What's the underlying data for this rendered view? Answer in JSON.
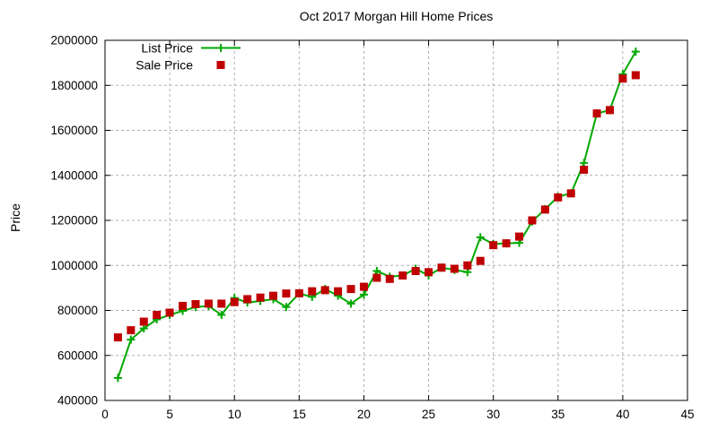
{
  "chart_data": {
    "type": "line",
    "title": "Oct 2017 Morgan Hill Home Prices",
    "xlabel": "",
    "ylabel": "Price",
    "xlim": [
      0,
      45
    ],
    "ylim": [
      400000,
      2000000
    ],
    "xticks": [
      0,
      5,
      10,
      15,
      20,
      25,
      30,
      35,
      40,
      45
    ],
    "yticks": [
      400000,
      600000,
      800000,
      1000000,
      1200000,
      1400000,
      1600000,
      1800000,
      2000000
    ],
    "grid": true,
    "grid_color": "#b0b0b0",
    "legend_position": "top-left",
    "x": [
      1,
      2,
      3,
      4,
      5,
      6,
      7,
      8,
      9,
      10,
      11,
      12,
      13,
      14,
      15,
      16,
      17,
      18,
      19,
      20,
      21,
      22,
      23,
      24,
      25,
      26,
      27,
      28,
      29,
      30,
      31,
      32,
      33,
      34,
      35,
      36,
      37,
      38,
      39,
      40,
      41
    ],
    "series": [
      {
        "name": "List Price",
        "color": "#00a800",
        "marker": "plus",
        "line": true,
        "values": [
          500000,
          670000,
          720000,
          760000,
          780000,
          798000,
          815000,
          820000,
          780000,
          855000,
          835000,
          842000,
          850000,
          815000,
          875000,
          860000,
          895000,
          865000,
          830000,
          870000,
          975000,
          950000,
          955000,
          985000,
          955000,
          990000,
          980000,
          970000,
          1125000,
          1095000,
          1098000,
          1100000,
          1195000,
          1250000,
          1305000,
          1320000,
          1455000,
          1675000,
          1690000,
          1850000,
          1950000
        ]
      },
      {
        "name": "Sale Price",
        "color": "#c00000",
        "marker": "square",
        "line": false,
        "values": [
          680000,
          712000,
          750000,
          780000,
          790000,
          820000,
          828000,
          830000,
          830000,
          837000,
          850000,
          857000,
          865000,
          875000,
          876000,
          885000,
          890000,
          885000,
          895000,
          905000,
          945000,
          940000,
          955000,
          975000,
          970000,
          990000,
          985000,
          1000000,
          1020000,
          1090000,
          1098000,
          1128000,
          1200000,
          1248000,
          1302000,
          1320000,
          1425000,
          1675000,
          1690000,
          1830000,
          1845000
        ]
      }
    ]
  }
}
